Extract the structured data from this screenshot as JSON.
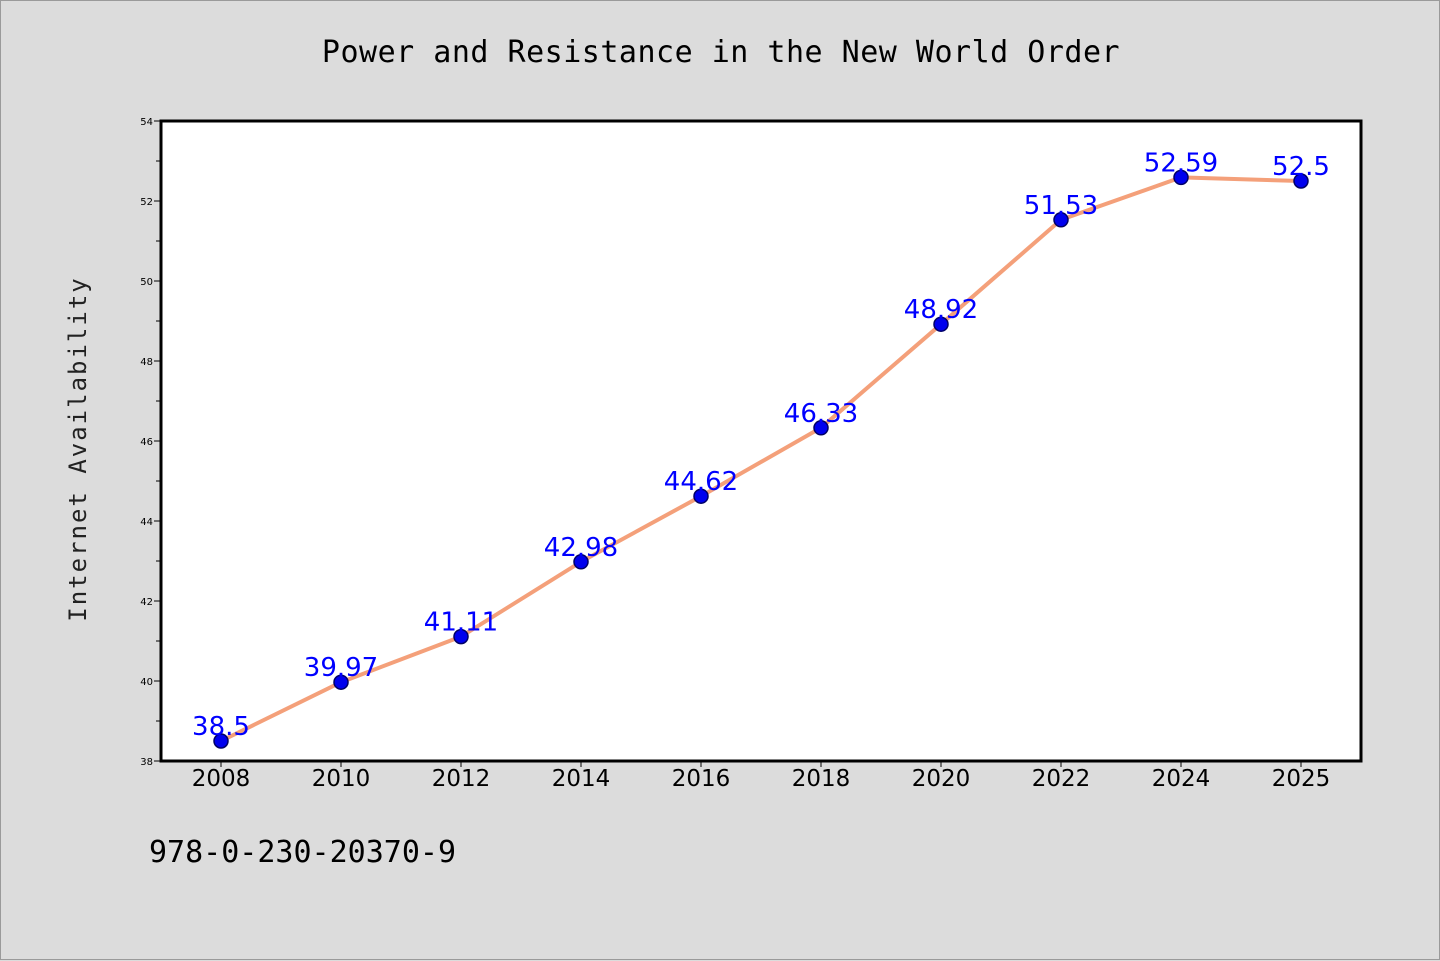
{
  "chart_data": {
    "type": "line",
    "title": "Power and Resistance in the New World Order",
    "xlabel": "",
    "ylabel": "Internet Availability",
    "categories": [
      "2008",
      "2010",
      "2012",
      "2014",
      "2016",
      "2018",
      "2020",
      "2022",
      "2024",
      "2025"
    ],
    "series": [
      {
        "values": [
          38.5,
          39.97,
          41.11,
          42.98,
          44.62,
          46.33,
          48.92,
          51.53,
          52.59,
          52.5
        ],
        "labels": [
          "38.5",
          "39.97",
          "41.11",
          "42.98",
          "44.62",
          "46.33",
          "48.92",
          "51.53",
          "52.59",
          "52.5"
        ]
      }
    ],
    "ylim": [
      38,
      54
    ],
    "yticks": [
      "38",
      "40",
      "42",
      "44",
      "46",
      "48",
      "50",
      "52",
      "54"
    ],
    "grid": false,
    "legend": "none",
    "colors": {
      "line": "#f4a07a",
      "marker": "#0000ee",
      "marker_edge": "#000066",
      "data_label": "#0000ff",
      "plot_bg": "#ffffff",
      "page_bg": "#dcdcdc"
    }
  },
  "footer_text": "978-0-230-20370-9"
}
